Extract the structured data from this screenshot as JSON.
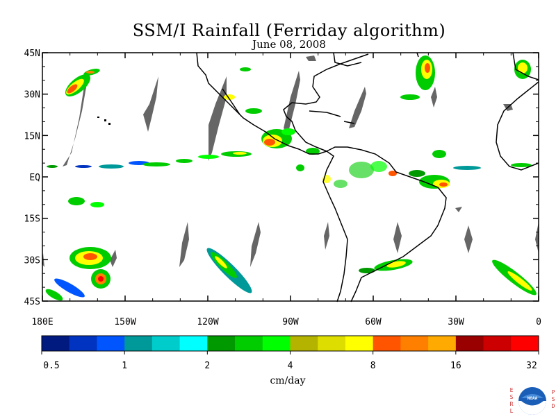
{
  "title": "SSM/I Rainfall (Ferriday algorithm)",
  "subtitle": "June 08, 2008",
  "map": {
    "projection": "cylindrical-equidistant",
    "lon_range": [
      -180,
      0
    ],
    "lat_range": [
      -45,
      45
    ],
    "lat_ticks": [
      {
        "value": 45,
        "label": "45N"
      },
      {
        "value": 30,
        "label": "30N"
      },
      {
        "value": 15,
        "label": "15N"
      },
      {
        "value": 0,
        "label": "EQ"
      },
      {
        "value": -15,
        "label": "15S"
      },
      {
        "value": -30,
        "label": "30S"
      },
      {
        "value": -45,
        "label": "45S"
      }
    ],
    "lon_ticks": [
      {
        "value": -180,
        "label": "180E"
      },
      {
        "value": -150,
        "label": "150W"
      },
      {
        "value": -120,
        "label": "120W"
      },
      {
        "value": -90,
        "label": "90W"
      },
      {
        "value": -60,
        "label": "60W"
      },
      {
        "value": -30,
        "label": "30W"
      },
      {
        "value": 0,
        "label": "0"
      }
    ],
    "missing_data_color": "#666666",
    "coastline_color": "#000000"
  },
  "colorbar": {
    "unit": "cm/day",
    "colors": [
      "#001a80",
      "#0033bf",
      "#0055ff",
      "#009999",
      "#00cccc",
      "#00ffff",
      "#009900",
      "#00cc00",
      "#00ff00",
      "#b3b300",
      "#dddd00",
      "#ffff00",
      "#ff5500",
      "#ff8000",
      "#ffaa00",
      "#990000",
      "#cc0000",
      "#ff0000"
    ],
    "labels": [
      "0.5",
      "1",
      "2",
      "4",
      "8",
      "16",
      "32"
    ]
  },
  "logo": {
    "left_letters": [
      "E",
      "S",
      "R",
      "L"
    ],
    "right_letters": [
      "P",
      "S",
      "D"
    ],
    "center_text": "NOAA"
  }
}
